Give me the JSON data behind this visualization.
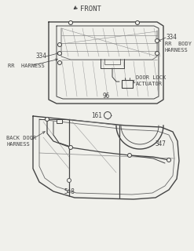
{
  "bg_color": "#f0f0eb",
  "line_color": "#444444",
  "text_color": "#444444",
  "front_label": "FRONT",
  "labels": {
    "334_right": "334",
    "334_left": "334",
    "96": "96",
    "rr_harness": "RR  HARNESS",
    "rr_body_harness": "RR  BODY\nHARNESS",
    "door_lock_actuator": "DOOR LOCK\nACTUATOR",
    "back_door_harness": "BACK DOOR\nHARNESS",
    "161": "161",
    "347": "347",
    "548": "548"
  },
  "figsize": [
    2.47,
    3.2
  ],
  "dpi": 100
}
